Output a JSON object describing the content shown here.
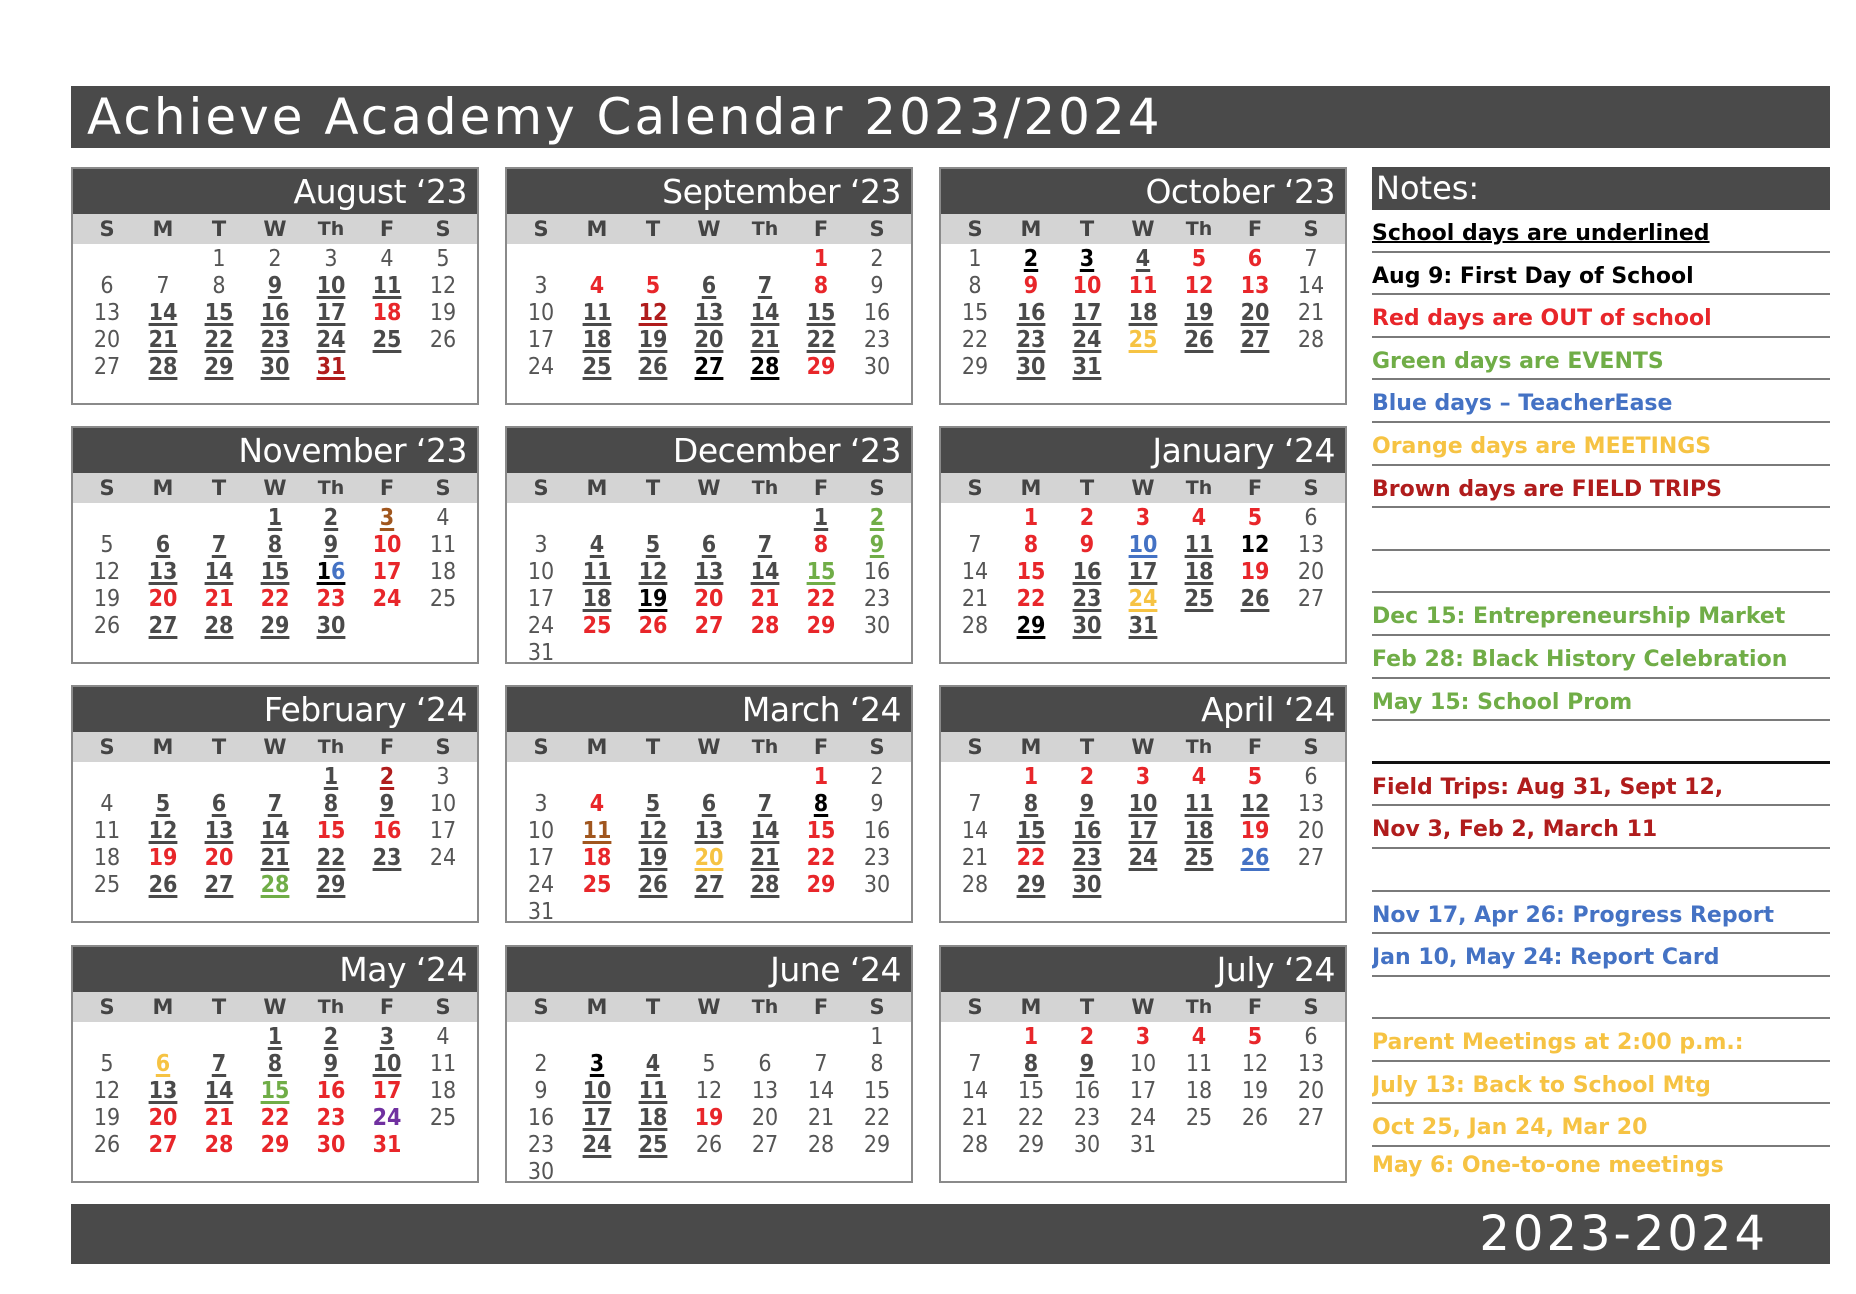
{
  "title": "Achieve Academy Calendar 2023/2024",
  "footer": "2023-2024",
  "colors": {
    "header": "#4a4a4a",
    "out": "#e8262a",
    "field_trip": "#b01c1c",
    "event": "#70ad47",
    "teacherease": "#4472c4",
    "meeting": "#f6c343",
    "report": "#7030a0"
  },
  "weekdays": [
    "S",
    "M",
    "T",
    "W",
    "Th",
    "F",
    "S"
  ],
  "months": [
    {
      "name": "August ‘23",
      "start": 2,
      "days": 31,
      "styles": {
        "9": "u",
        "10": "u",
        "11": "u",
        "14": "u",
        "15": "u",
        "16": "u",
        "17": "u",
        "18": "r",
        "21": "u",
        "22": "u",
        "23": "u",
        "24": "u",
        "25": "u",
        "28": "u",
        "29": "u",
        "30": "u",
        "31": "ft"
      }
    },
    {
      "name": "September ‘23",
      "start": 5,
      "days": 30,
      "styles": {
        "1": "r",
        "4": "r",
        "5": "r",
        "6": "u",
        "7": "u",
        "8": "r",
        "11": "u",
        "12": "ft",
        "13": "u",
        "14": "u",
        "15": "u",
        "18": "u",
        "19": "u",
        "20": "u",
        "21": "u",
        "22": "u",
        "25": "u",
        "26": "u",
        "27": "k",
        "28": "k",
        "29": "r"
      }
    },
    {
      "name": "October ‘23",
      "start": 0,
      "days": 31,
      "styles": {
        "2": "k",
        "3": "k",
        "4": "u",
        "5": "r",
        "6": "r",
        "9": "r",
        "10": "r",
        "11": "r",
        "12": "r",
        "13": "r",
        "16": "u",
        "17": "u",
        "18": "u",
        "19": "u",
        "20": "u",
        "23": "u",
        "24": "u",
        "25": "o",
        "26": "u",
        "27": "u",
        "30": "u",
        "31": "u"
      }
    },
    {
      "name": "November ‘23",
      "start": 3,
      "days": 30,
      "styles": {
        "1": "u",
        "2": "u",
        "3": "br",
        "6": "u",
        "7": "u",
        "8": "u",
        "9": "u",
        "10": "r",
        "13": "u",
        "14": "u",
        "15": "u",
        "16": "split",
        "17": "r",
        "20": "r",
        "21": "r",
        "22": "r",
        "23": "r",
        "24": "r",
        "27": "u",
        "28": "u",
        "29": "u",
        "30": "u"
      }
    },
    {
      "name": "December ‘23",
      "start": 5,
      "days": 31,
      "styles": {
        "1": "u",
        "2": "g",
        "4": "u",
        "5": "u",
        "6": "u",
        "7": "u",
        "8": "r",
        "9": "g",
        "11": "u",
        "12": "u",
        "13": "u",
        "14": "u",
        "15": "g",
        "18": "u",
        "19": "k",
        "20": "r",
        "21": "r",
        "22": "r",
        "25": "r",
        "26": "r",
        "27": "r",
        "28": "r",
        "29": "r"
      }
    },
    {
      "name": "January ‘24",
      "start": 1,
      "days": 31,
      "styles": {
        "1": "r",
        "2": "r",
        "3": "r",
        "4": "r",
        "5": "r",
        "8": "r",
        "9": "r",
        "10": "b",
        "11": "u",
        "12": "kn",
        "15": "r",
        "16": "u",
        "17": "u",
        "18": "u",
        "19": "r",
        "22": "r",
        "23": "u",
        "24": "o",
        "25": "u",
        "26": "u",
        "29": "k",
        "30": "u",
        "31": "u"
      }
    },
    {
      "name": "February ‘24",
      "start": 4,
      "days": 29,
      "styles": {
        "1": "u",
        "2": "ft",
        "5": "u",
        "6": "u",
        "7": "u",
        "8": "u",
        "9": "u",
        "12": "u",
        "13": "u",
        "14": "u",
        "15": "r",
        "16": "r",
        "19": "r",
        "20": "r",
        "21": "u",
        "22": "u",
        "23": "u",
        "26": "u",
        "27": "u",
        "28": "g",
        "29": "u"
      }
    },
    {
      "name": "March ‘24",
      "start": 5,
      "days": 31,
      "styles": {
        "1": "r",
        "4": "r",
        "5": "u",
        "6": "u",
        "7": "u",
        "8": "k",
        "11": "br",
        "12": "u",
        "13": "u",
        "14": "u",
        "15": "r",
        "18": "r",
        "19": "u",
        "20": "o",
        "21": "u",
        "22": "r",
        "25": "r",
        "26": "u",
        "27": "u",
        "28": "u",
        "29": "r"
      }
    },
    {
      "name": "April ‘24",
      "start": 1,
      "days": 30,
      "styles": {
        "1": "r",
        "2": "r",
        "3": "r",
        "4": "r",
        "5": "r",
        "8": "u",
        "9": "u",
        "10": "u",
        "11": "u",
        "12": "u",
        "15": "u",
        "16": "u",
        "17": "u",
        "18": "u",
        "19": "r",
        "22": "r",
        "23": "u",
        "24": "u",
        "25": "u",
        "26": "b",
        "29": "u",
        "30": "u"
      }
    },
    {
      "name": "May ‘24",
      "start": 3,
      "days": 31,
      "styles": {
        "1": "u",
        "2": "u",
        "3": "u",
        "6": "o",
        "7": "u",
        "8": "u",
        "9": "u",
        "10": "u",
        "13": "u",
        "14": "u",
        "15": "g",
        "16": "r",
        "17": "r",
        "20": "r",
        "21": "r",
        "22": "r",
        "23": "r",
        "24": "p",
        "27": "r",
        "28": "r",
        "29": "r",
        "30": "r",
        "31": "r"
      }
    },
    {
      "name": "June ‘24",
      "start": 6,
      "days": 30,
      "styles": {
        "3": "k",
        "4": "u",
        "10": "u",
        "11": "u",
        "17": "u",
        "18": "u",
        "19": "r",
        "24": "u",
        "25": "u"
      }
    },
    {
      "name": "July ‘24",
      "start": 1,
      "days": 31,
      "styles": {
        "1": "r",
        "2": "r",
        "3": "r",
        "4": "r",
        "5": "r",
        "8": "u",
        "9": "u"
      }
    }
  ],
  "notes": {
    "heading": "Notes:",
    "rows": [
      {
        "text": "School days are underlined",
        "color": "#000000",
        "underline": true
      },
      {
        "text": "Aug 9: First Day of School",
        "color": "#000000"
      },
      {
        "text": "Red days are OUT of school",
        "color": "#e8262a"
      },
      {
        "text": "Green days are EVENTS",
        "color": "#70ad47"
      },
      {
        "text": "Blue days – TeacherEase",
        "color": "#4472c4"
      },
      {
        "text": "Orange days are MEETINGS",
        "color": "#f6c343"
      },
      {
        "text": "Brown days are FIELD TRIPS",
        "color": "#b01c1c"
      },
      {
        "text": "",
        "color": "#000000"
      },
      {
        "text": "",
        "color": "#000000"
      },
      {
        "text": "Dec 15: Entrepreneurship Market",
        "color": "#70ad47"
      },
      {
        "text": "Feb 28: Black History Celebration",
        "color": "#70ad47"
      },
      {
        "text": "May 15: School Prom",
        "color": "#70ad47"
      },
      {
        "text": "",
        "color": "#000000"
      },
      {
        "text": "Field Trips: Aug 31, Sept 12,",
        "color": "#b01c1c"
      },
      {
        "text": "Nov 3, Feb 2, March 11",
        "color": "#b01c1c"
      },
      {
        "text": "",
        "color": "#000000"
      },
      {
        "text": "Nov 17, Apr 26: Progress Report",
        "color": "#4472c4"
      },
      {
        "text": "Jan 10, May 24: Report Card",
        "color": "#4472c4"
      },
      {
        "text": "",
        "color": "#000000"
      },
      {
        "text": "Parent Meetings at 2:00 p.m.:",
        "color": "#f6c343"
      },
      {
        "text": "July 13: Back to School Mtg",
        "color": "#f6c343"
      },
      {
        "text": "Oct 25, Jan 24, Mar 20",
        "color": "#f6c343"
      },
      {
        "text": "May 6: One-to-one meetings",
        "color": "#f6c343"
      }
    ]
  }
}
